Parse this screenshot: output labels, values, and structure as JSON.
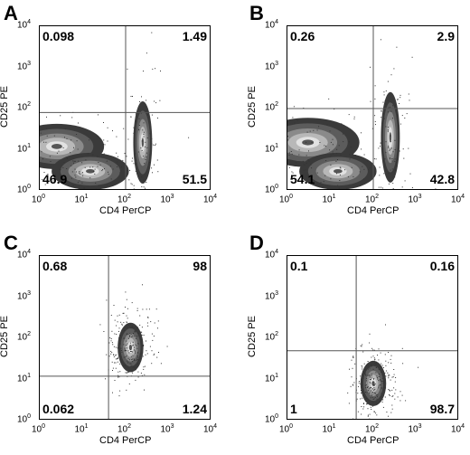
{
  "chart_data": [
    {
      "type": "scatter",
      "panel": "A",
      "xlabel": "CD4 PerCP",
      "ylabel": "CD25 PE",
      "xscale": "log",
      "yscale": "log",
      "xlim": [
        1,
        10000
      ],
      "ylim": [
        1,
        10000
      ],
      "x_ticks": [
        "10^0",
        "10^1",
        "10^2",
        "10^3",
        "10^4"
      ],
      "y_ticks": [
        "10^0",
        "10^1",
        "10^2",
        "10^3",
        "10^4"
      ],
      "gate_x": 100,
      "gate_y": 80,
      "quadrants": {
        "upper_left": "0.098",
        "upper_right": "1.49",
        "lower_left": "46.9",
        "lower_right": "51.5"
      },
      "populations": [
        {
          "cx": 2.5,
          "cy": 12,
          "sx": 1.1,
          "sy": 0.55
        },
        {
          "cx": 15,
          "cy": 3,
          "sx": 0.9,
          "sy": 0.45
        },
        {
          "cx": 250,
          "cy": 15,
          "sx": 0.22,
          "sy": 1.0
        }
      ]
    },
    {
      "type": "scatter",
      "panel": "B",
      "xlabel": "CD4 PerCP",
      "ylabel": "CD25 PE",
      "xscale": "log",
      "yscale": "log",
      "xlim": [
        1,
        10000
      ],
      "ylim": [
        1,
        10000
      ],
      "x_ticks": [
        "10^0",
        "10^1",
        "10^2",
        "10^3",
        "10^4"
      ],
      "y_ticks": [
        "10^0",
        "10^1",
        "10^2",
        "10^3",
        "10^4"
      ],
      "gate_x": 100,
      "gate_y": 100,
      "quadrants": {
        "upper_left": "0.26",
        "upper_right": "2.9",
        "lower_left": "54.1",
        "lower_right": "42.8"
      },
      "populations": [
        {
          "cx": 3,
          "cy": 15,
          "sx": 1.2,
          "sy": 0.6
        },
        {
          "cx": 15,
          "cy": 3,
          "sx": 0.9,
          "sy": 0.45
        },
        {
          "cx": 250,
          "cy": 20,
          "sx": 0.22,
          "sy": 1.1
        }
      ]
    },
    {
      "type": "scatter",
      "panel": "C",
      "xlabel": "CD4 PerCP",
      "ylabel": "CD25 PE",
      "xscale": "log",
      "yscale": "log",
      "xlim": [
        1,
        10000
      ],
      "ylim": [
        1,
        10000
      ],
      "x_ticks": [
        "10^0",
        "10^1",
        "10^2",
        "10^3",
        "10^4"
      ],
      "y_ticks": [
        "10^0",
        "10^1",
        "10^2",
        "10^3",
        "10^4"
      ],
      "gate_x": 40,
      "gate_y": 12,
      "quadrants": {
        "upper_left": "0.68",
        "upper_right": "98",
        "lower_left": "0.062",
        "lower_right": "1.24"
      },
      "populations": [
        {
          "cx": 130,
          "cy": 60,
          "sx": 0.3,
          "sy": 0.6
        }
      ]
    },
    {
      "type": "scatter",
      "panel": "D",
      "xlabel": "CD4 PerCP",
      "ylabel": "CD25 PE",
      "xscale": "log",
      "yscale": "log",
      "xlim": [
        1,
        10000
      ],
      "ylim": [
        1,
        10000
      ],
      "x_ticks": [
        "10^0",
        "10^1",
        "10^2",
        "10^3",
        "10^4"
      ],
      "y_ticks": [
        "10^0",
        "10^1",
        "10^2",
        "10^3",
        "10^4"
      ],
      "gate_x": 40,
      "gate_y": 50,
      "quadrants": {
        "upper_left": "0.1",
        "upper_right": "0.16",
        "lower_left": "1",
        "lower_right": "98.7"
      },
      "populations": [
        {
          "cx": 100,
          "cy": 8,
          "sx": 0.3,
          "sy": 0.55
        }
      ]
    }
  ]
}
